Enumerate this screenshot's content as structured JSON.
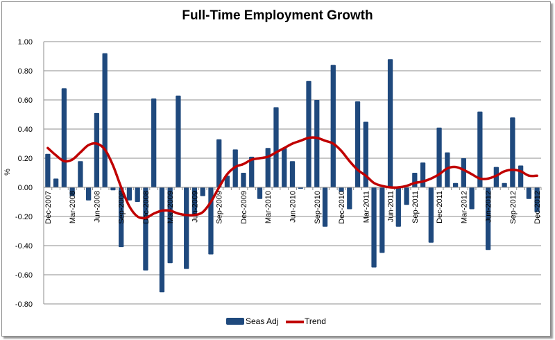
{
  "chart_data": {
    "type": "bar",
    "title": "Full-Time Employment Growth",
    "xlabel": "",
    "ylabel": "%",
    "ylim": [
      -0.8,
      1.0
    ],
    "yticks": [
      "1.00",
      "0.80",
      "0.60",
      "0.40",
      "0.20",
      "0.00",
      "-0.20",
      "-0.40",
      "-0.60",
      "-0.80"
    ],
    "ytick_values": [
      1.0,
      0.8,
      0.6,
      0.4,
      0.2,
      0.0,
      -0.2,
      -0.4,
      -0.6,
      -0.8
    ],
    "grid": true,
    "legend_position": "bottom",
    "x_tick_labels": [
      "Dec-2007",
      "Mar-2008",
      "Jun-2008",
      "Sep-2008",
      "Dec-2008",
      "Mar-2009",
      "Jun-2009",
      "Sep-2009",
      "Dec-2009",
      "Mar-2010",
      "Jun-2010",
      "Sep-2010",
      "Dec-2010",
      "Mar-2011",
      "Jun-2011",
      "Sep-2011",
      "Dec-2011",
      "Mar-2012",
      "Jun-2012",
      "Sep-2012",
      "Dec-2012"
    ],
    "x_tick_every": 3,
    "series": [
      {
        "name": "Seas Adj",
        "type": "bar",
        "color": "#1f497d",
        "values": [
          0.23,
          0.06,
          0.68,
          -0.06,
          0.18,
          -0.09,
          0.51,
          0.92,
          -0.02,
          -0.41,
          -0.09,
          -0.1,
          -0.57,
          0.61,
          -0.72,
          -0.52,
          0.63,
          -0.56,
          -0.2,
          -0.06,
          -0.46,
          0.33,
          0.08,
          0.26,
          0.1,
          0.21,
          -0.08,
          0.27,
          0.55,
          0.27,
          0.18,
          -0.01,
          0.73,
          0.6,
          -0.27,
          0.84,
          -0.03,
          -0.15,
          0.59,
          0.45,
          -0.55,
          -0.45,
          0.88,
          -0.27,
          -0.12,
          0.1,
          0.17,
          -0.38,
          0.41,
          0.24,
          0.03,
          0.2,
          -0.15,
          0.52,
          -0.43,
          0.14,
          0.03,
          0.48,
          0.15,
          -0.08,
          -0.17
        ]
      },
      {
        "name": "Trend",
        "type": "line",
        "color": "#c00000",
        "values": [
          0.27,
          0.22,
          0.18,
          0.19,
          0.24,
          0.29,
          0.3,
          0.26,
          0.15,
          0.0,
          -0.13,
          -0.2,
          -0.21,
          -0.18,
          -0.16,
          -0.16,
          -0.18,
          -0.19,
          -0.19,
          -0.17,
          -0.1,
          0.0,
          0.09,
          0.14,
          0.16,
          0.19,
          0.2,
          0.21,
          0.24,
          0.27,
          0.3,
          0.32,
          0.34,
          0.34,
          0.32,
          0.3,
          0.25,
          0.18,
          0.12,
          0.08,
          0.03,
          0.01,
          0.0,
          0.0,
          0.01,
          0.03,
          0.04,
          0.06,
          0.09,
          0.13,
          0.14,
          0.12,
          0.09,
          0.06,
          0.06,
          0.08,
          0.11,
          0.12,
          0.11,
          0.08,
          0.08
        ]
      }
    ]
  }
}
